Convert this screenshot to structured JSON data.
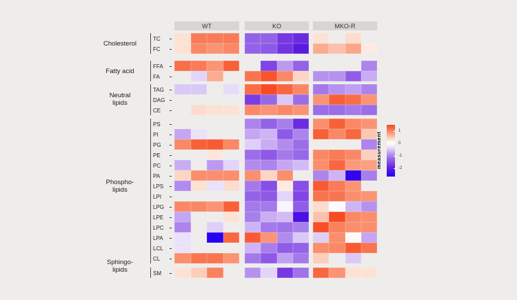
{
  "page": {
    "background": "#eeedeb"
  },
  "legend": {
    "title": "measurement",
    "tick_labels": [
      "1",
      "0",
      "-1",
      "-2"
    ],
    "tick_values": [
      1,
      0,
      -1,
      -2
    ]
  },
  "chart_data": {
    "type": "heatmap",
    "column_groups": [
      "WT",
      "KO",
      "MKO-R"
    ],
    "columns_per_group": 4,
    "colorscale": {
      "label": "measurement",
      "max": 1.5,
      "min": -2.7,
      "ticks": [
        1,
        0,
        -1,
        -2
      ],
      "high_color": "#f84018",
      "mid_color": "#ffffff",
      "low_color": "#2600f2"
    },
    "row_classes": [
      {
        "name": "Cholesterol",
        "label_lines": [
          "Cholesterol"
        ],
        "lipids": [
          "TC",
          "FC"
        ]
      },
      {
        "name": "Fatty acid",
        "label_lines": [
          "Fatty acid"
        ],
        "lipids": [
          "FFA",
          "FA"
        ]
      },
      {
        "name": "Neutral lipids",
        "label_lines": [
          "Neutral",
          "lipids"
        ],
        "lipids": [
          "TAG",
          "DAG",
          "CE"
        ]
      },
      {
        "name": "Phospho-lipids",
        "label_lines": [
          "Phospho-",
          "lipids"
        ],
        "lipids": [
          "PS",
          "PI",
          "PG",
          "PE",
          "PC",
          "PA",
          "LPS",
          "LPI",
          "LPG",
          "LPE",
          "LPC",
          "LPA",
          "LCL",
          "CL"
        ]
      },
      {
        "name": "Sphingo-lipids",
        "label_lines": [
          "Sphingo-",
          "lipids"
        ],
        "lipids": [
          "SM"
        ]
      }
    ],
    "values": {
      "TC": {
        "WT": [
          0.3,
          1.1,
          1.1,
          1.1
        ],
        "KO": [
          -1.3,
          -1.3,
          -1.75,
          -1.9
        ],
        "MKO-R": [
          0.3,
          null,
          0.35,
          null
        ]
      },
      "FC": {
        "WT": [
          0.3,
          1.0,
          0.9,
          1.0
        ],
        "KO": [
          -1.3,
          -1.4,
          -1.8,
          -2.1
        ],
        "MKO-R": [
          0.7,
          0.55,
          0.75,
          0.2
        ]
      },
      "FFA": {
        "WT": [
          1.2,
          1.1,
          0.9,
          1.3
        ],
        "KO": [
          null,
          -1.6,
          -0.85,
          -1.3
        ],
        "MKO-R": [
          null,
          null,
          null,
          -1.0
        ]
      },
      "FA": {
        "WT": [
          null,
          -0.4,
          0.7,
          null
        ],
        "KO": [
          1.15,
          1.4,
          1.0,
          0.4
        ],
        "MKO-R": [
          -0.9,
          -0.9,
          -1.35,
          -0.7
        ]
      },
      "TAG": {
        "WT": [
          -0.5,
          -0.5,
          null,
          -0.35
        ],
        "KO": [
          1.2,
          1.5,
          1.25,
          1.0
        ],
        "MKO-R": [
          -1.1,
          -0.9,
          -0.8,
          -1.0
        ]
      },
      "DAG": {
        "WT": [
          null,
          null,
          null,
          null
        ],
        "KO": [
          -1.7,
          -1.25,
          -0.5,
          -1.2
        ],
        "MKO-R": [
          0.9,
          1.3,
          1.2,
          0.9
        ]
      },
      "CE": {
        "WT": [
          null,
          0.35,
          0.3,
          0.3
        ],
        "KO": [
          1.0,
          0.9,
          1.0,
          0.9
        ],
        "MKO-R": [
          -1.2,
          -1.2,
          -1.1,
          -1.2
        ]
      },
      "PS": {
        "WT": [
          null,
          null,
          null,
          null
        ],
        "KO": [
          -1.0,
          -1.3,
          -1.05,
          -1.9
        ],
        "MKO-R": [
          0.95,
          1.3,
          1.0,
          0.9
        ]
      },
      "PI": {
        "WT": [
          -0.75,
          -0.3,
          null,
          null
        ],
        "KO": [
          -0.75,
          -0.65,
          -1.4,
          -1.0
        ],
        "MKO-R": [
          1.3,
          1.0,
          1.25,
          0.5
        ]
      },
      "PG": {
        "WT": [
          1.0,
          1.3,
          1.35,
          1.0
        ],
        "KO": [
          -0.45,
          -0.7,
          -0.95,
          -1.2
        ],
        "MKO-R": [
          null,
          null,
          null,
          -1.0
        ]
      },
      "PE": {
        "WT": [
          null,
          null,
          0.25,
          null
        ],
        "KO": [
          -1.2,
          -1.4,
          -1.1,
          -1.25
        ],
        "MKO-R": [
          1.0,
          1.1,
          1.0,
          0.45
        ]
      },
      "PC": {
        "WT": [
          -0.7,
          null,
          -0.85,
          -0.4
        ],
        "KO": [
          -0.95,
          -1.0,
          -0.75,
          -0.6
        ],
        "MKO-R": [
          0.95,
          1.25,
          0.85,
          0.8
        ]
      },
      "PA": {
        "WT": [
          0.4,
          0.95,
          0.95,
          0.95
        ],
        "KO": [
          0.95,
          0.4,
          0.95,
          null
        ],
        "MKO-R": [
          -1.0,
          -0.65,
          -2.6,
          -1.05
        ]
      },
      "LPS": {
        "WT": [
          -0.95,
          0.3,
          -0.3,
          0.35
        ],
        "KO": [
          -1.1,
          -1.5,
          0.2,
          -1.5
        ],
        "MKO-R": [
          1.35,
          1.1,
          0.9,
          null
        ]
      },
      "LPI": {
        "WT": [
          null,
          null,
          null,
          null
        ],
        "KO": [
          -1.3,
          -1.4,
          -0.4,
          -1.6
        ],
        "MKO-R": [
          1.15,
          1.15,
          0.95,
          0.9
        ]
      },
      "LPG": {
        "WT": [
          1.0,
          1.0,
          0.9,
          1.3
        ],
        "KO": [
          -1.1,
          -1.1,
          -0.1,
          -1.35
        ],
        "MKO-R": [
          0.35,
          -0.05,
          -0.65,
          -0.9
        ]
      },
      "LPE": {
        "WT": [
          -0.75,
          null,
          null,
          0.3
        ],
        "KO": [
          -1.05,
          -0.7,
          -0.6,
          -2.3
        ],
        "MKO-R": [
          0.55,
          1.5,
          1.0,
          0.95
        ]
      },
      "LPC": {
        "WT": [
          -1.0,
          null,
          -0.45,
          null
        ],
        "KO": [
          -0.65,
          -1.1,
          -1.15,
          -1.05
        ],
        "MKO-R": [
          1.45,
          1.05,
          0.95,
          0.95
        ]
      },
      "LPA": {
        "WT": [
          -0.3,
          null,
          -2.7,
          1.25
        ],
        "KO": [
          1.35,
          0.9,
          -0.95,
          -0.5
        ],
        "MKO-R": [
          -0.45,
          0.95,
          0.05,
          -0.75
        ]
      },
      "LCL": {
        "WT": [
          -0.3,
          null,
          null,
          null
        ],
        "KO": [
          -0.65,
          -1.05,
          -1.35,
          -1.3
        ],
        "MKO-R": [
          0.95,
          1.0,
          1.35,
          1.15
        ]
      },
      "CL": {
        "WT": [
          0.95,
          1.15,
          1.15,
          0.9
        ],
        "KO": [
          -1.1,
          -1.4,
          -0.8,
          -1.1
        ],
        "MKO-R": [
          0.45,
          null,
          -0.5,
          null
        ]
      },
      "SM": {
        "WT": [
          0.3,
          0.45,
          1.05,
          null
        ],
        "KO": [
          -0.9,
          -0.4,
          -1.75,
          -1.15
        ],
        "MKO-R": [
          1.25,
          0.9,
          0.3,
          0.3
        ]
      }
    }
  }
}
